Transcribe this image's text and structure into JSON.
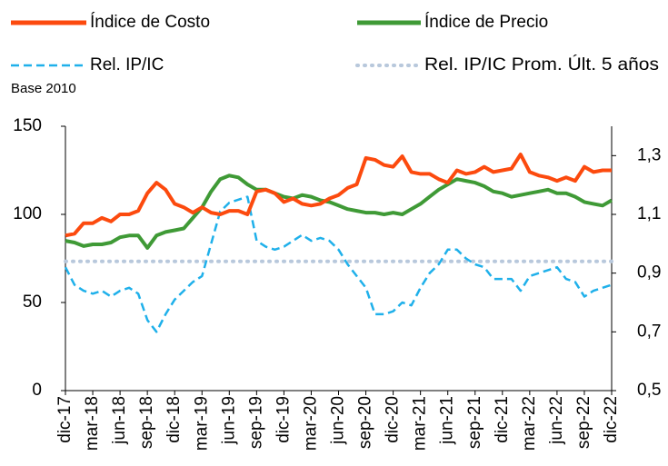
{
  "chart_data": {
    "type": "line",
    "subtitle": "Base  2010",
    "categories": [
      "dic-17",
      null,
      null,
      "mar-18",
      null,
      null,
      "jun-18",
      null,
      null,
      "sep-18",
      null,
      null,
      "dic-18",
      null,
      null,
      "mar-19",
      null,
      null,
      "jun-19",
      null,
      null,
      "sep-19",
      null,
      null,
      "dic-19",
      null,
      null,
      "mar-20",
      null,
      null,
      "jun-20",
      null,
      null,
      "sep-20",
      null,
      null,
      "dic-20",
      null,
      null,
      "mar-21",
      null,
      null,
      "jun-21",
      null,
      null,
      "sep-21",
      null,
      null,
      "dic-21",
      null,
      null,
      "mar-22",
      null,
      null,
      "jun-22",
      null,
      null,
      "sep-22",
      null,
      null,
      "dic-22"
    ],
    "series": [
      {
        "name": "Índice de Costo",
        "color": "#fc4a0e",
        "style": "solid",
        "values": [
          88,
          89,
          95,
          95,
          98,
          96,
          100,
          100,
          102,
          112,
          118,
          114,
          106,
          104,
          101,
          104,
          101,
          100,
          102,
          102,
          100,
          113,
          114,
          112,
          107,
          109,
          106,
          105,
          106,
          109,
          111,
          115,
          117,
          132,
          131,
          128,
          127,
          133,
          124,
          123,
          123,
          120,
          118,
          125,
          123,
          124,
          127,
          124,
          125,
          126,
          134,
          124,
          122,
          121,
          119,
          121,
          119,
          127,
          124,
          125,
          125
        ]
      },
      {
        "name": "Índice de Precio",
        "color": "#3f9a36",
        "style": "solid",
        "values": [
          85,
          84,
          82,
          83,
          83,
          84,
          87,
          88,
          88,
          81,
          88,
          90,
          91,
          92,
          98,
          104,
          113,
          120,
          122,
          121,
          117,
          114,
          114,
          112,
          110,
          109,
          111,
          110,
          108,
          107,
          105,
          103,
          102,
          101,
          101,
          100,
          101,
          100,
          103,
          106,
          110,
          114,
          117,
          120,
          119,
          118,
          116,
          113,
          112,
          110,
          111,
          112,
          113,
          114,
          112,
          112,
          110,
          107,
          106,
          105,
          108
        ]
      },
      {
        "name": "Rel. IP/IC",
        "color": "#1fb0ea",
        "style": "dashed",
        "axis": "y2",
        "values": [
          0.92,
          0.86,
          0.84,
          0.83,
          0.84,
          0.82,
          0.84,
          0.85,
          0.83,
          0.74,
          0.7,
          0.76,
          0.81,
          0.84,
          0.87,
          0.89,
          1.0,
          1.11,
          1.14,
          1.15,
          1.16,
          1.01,
          0.99,
          0.98,
          0.99,
          1.01,
          1.03,
          1.01,
          1.02,
          1.01,
          0.98,
          0.93,
          0.89,
          0.85,
          0.76,
          0.76,
          0.77,
          0.8,
          0.79,
          0.85,
          0.9,
          0.93,
          0.98,
          0.98,
          0.95,
          0.93,
          0.92,
          0.88,
          0.88,
          0.88,
          0.84,
          0.89,
          0.9,
          0.91,
          0.92,
          0.88,
          0.87,
          0.82,
          0.84,
          0.85,
          0.86
        ]
      },
      {
        "name": "Rel. IP/IC Prom. Últ. 5 años",
        "color": "#b8c8dc",
        "style": "dotted",
        "axis": "y2",
        "values": [
          0.94,
          0.94,
          0.94,
          0.94,
          0.94,
          0.94,
          0.94,
          0.94,
          0.94,
          0.94,
          0.94,
          0.94,
          0.94,
          0.94,
          0.94,
          0.94,
          0.94,
          0.94,
          0.94,
          0.94,
          0.94,
          0.94,
          0.94,
          0.94,
          0.94,
          0.94,
          0.94,
          0.94,
          0.94,
          0.94,
          0.94,
          0.94,
          0.94,
          0.94,
          0.94,
          0.94,
          0.94,
          0.94,
          0.94,
          0.94,
          0.94,
          0.94,
          0.94,
          0.94,
          0.94,
          0.94,
          0.94,
          0.94,
          0.94,
          0.94,
          0.94,
          0.94,
          0.94,
          0.94,
          0.94,
          0.94,
          0.94,
          0.94,
          0.94,
          0.94,
          0.94
        ]
      }
    ],
    "ylim": [
      0,
      150
    ],
    "yticks": [
      0,
      50,
      100,
      150
    ],
    "y2lim": [
      0.5,
      1.4
    ],
    "y2ticks": [
      {
        "value": 0.5,
        "label": "0,5"
      },
      {
        "value": 0.7,
        "label": "0,7"
      },
      {
        "value": 0.9,
        "label": "0,9"
      },
      {
        "value": 1.1,
        "label": "1,1"
      },
      {
        "value": 1.3,
        "label": "1,3"
      }
    ],
    "grid": false,
    "legend": "top"
  }
}
